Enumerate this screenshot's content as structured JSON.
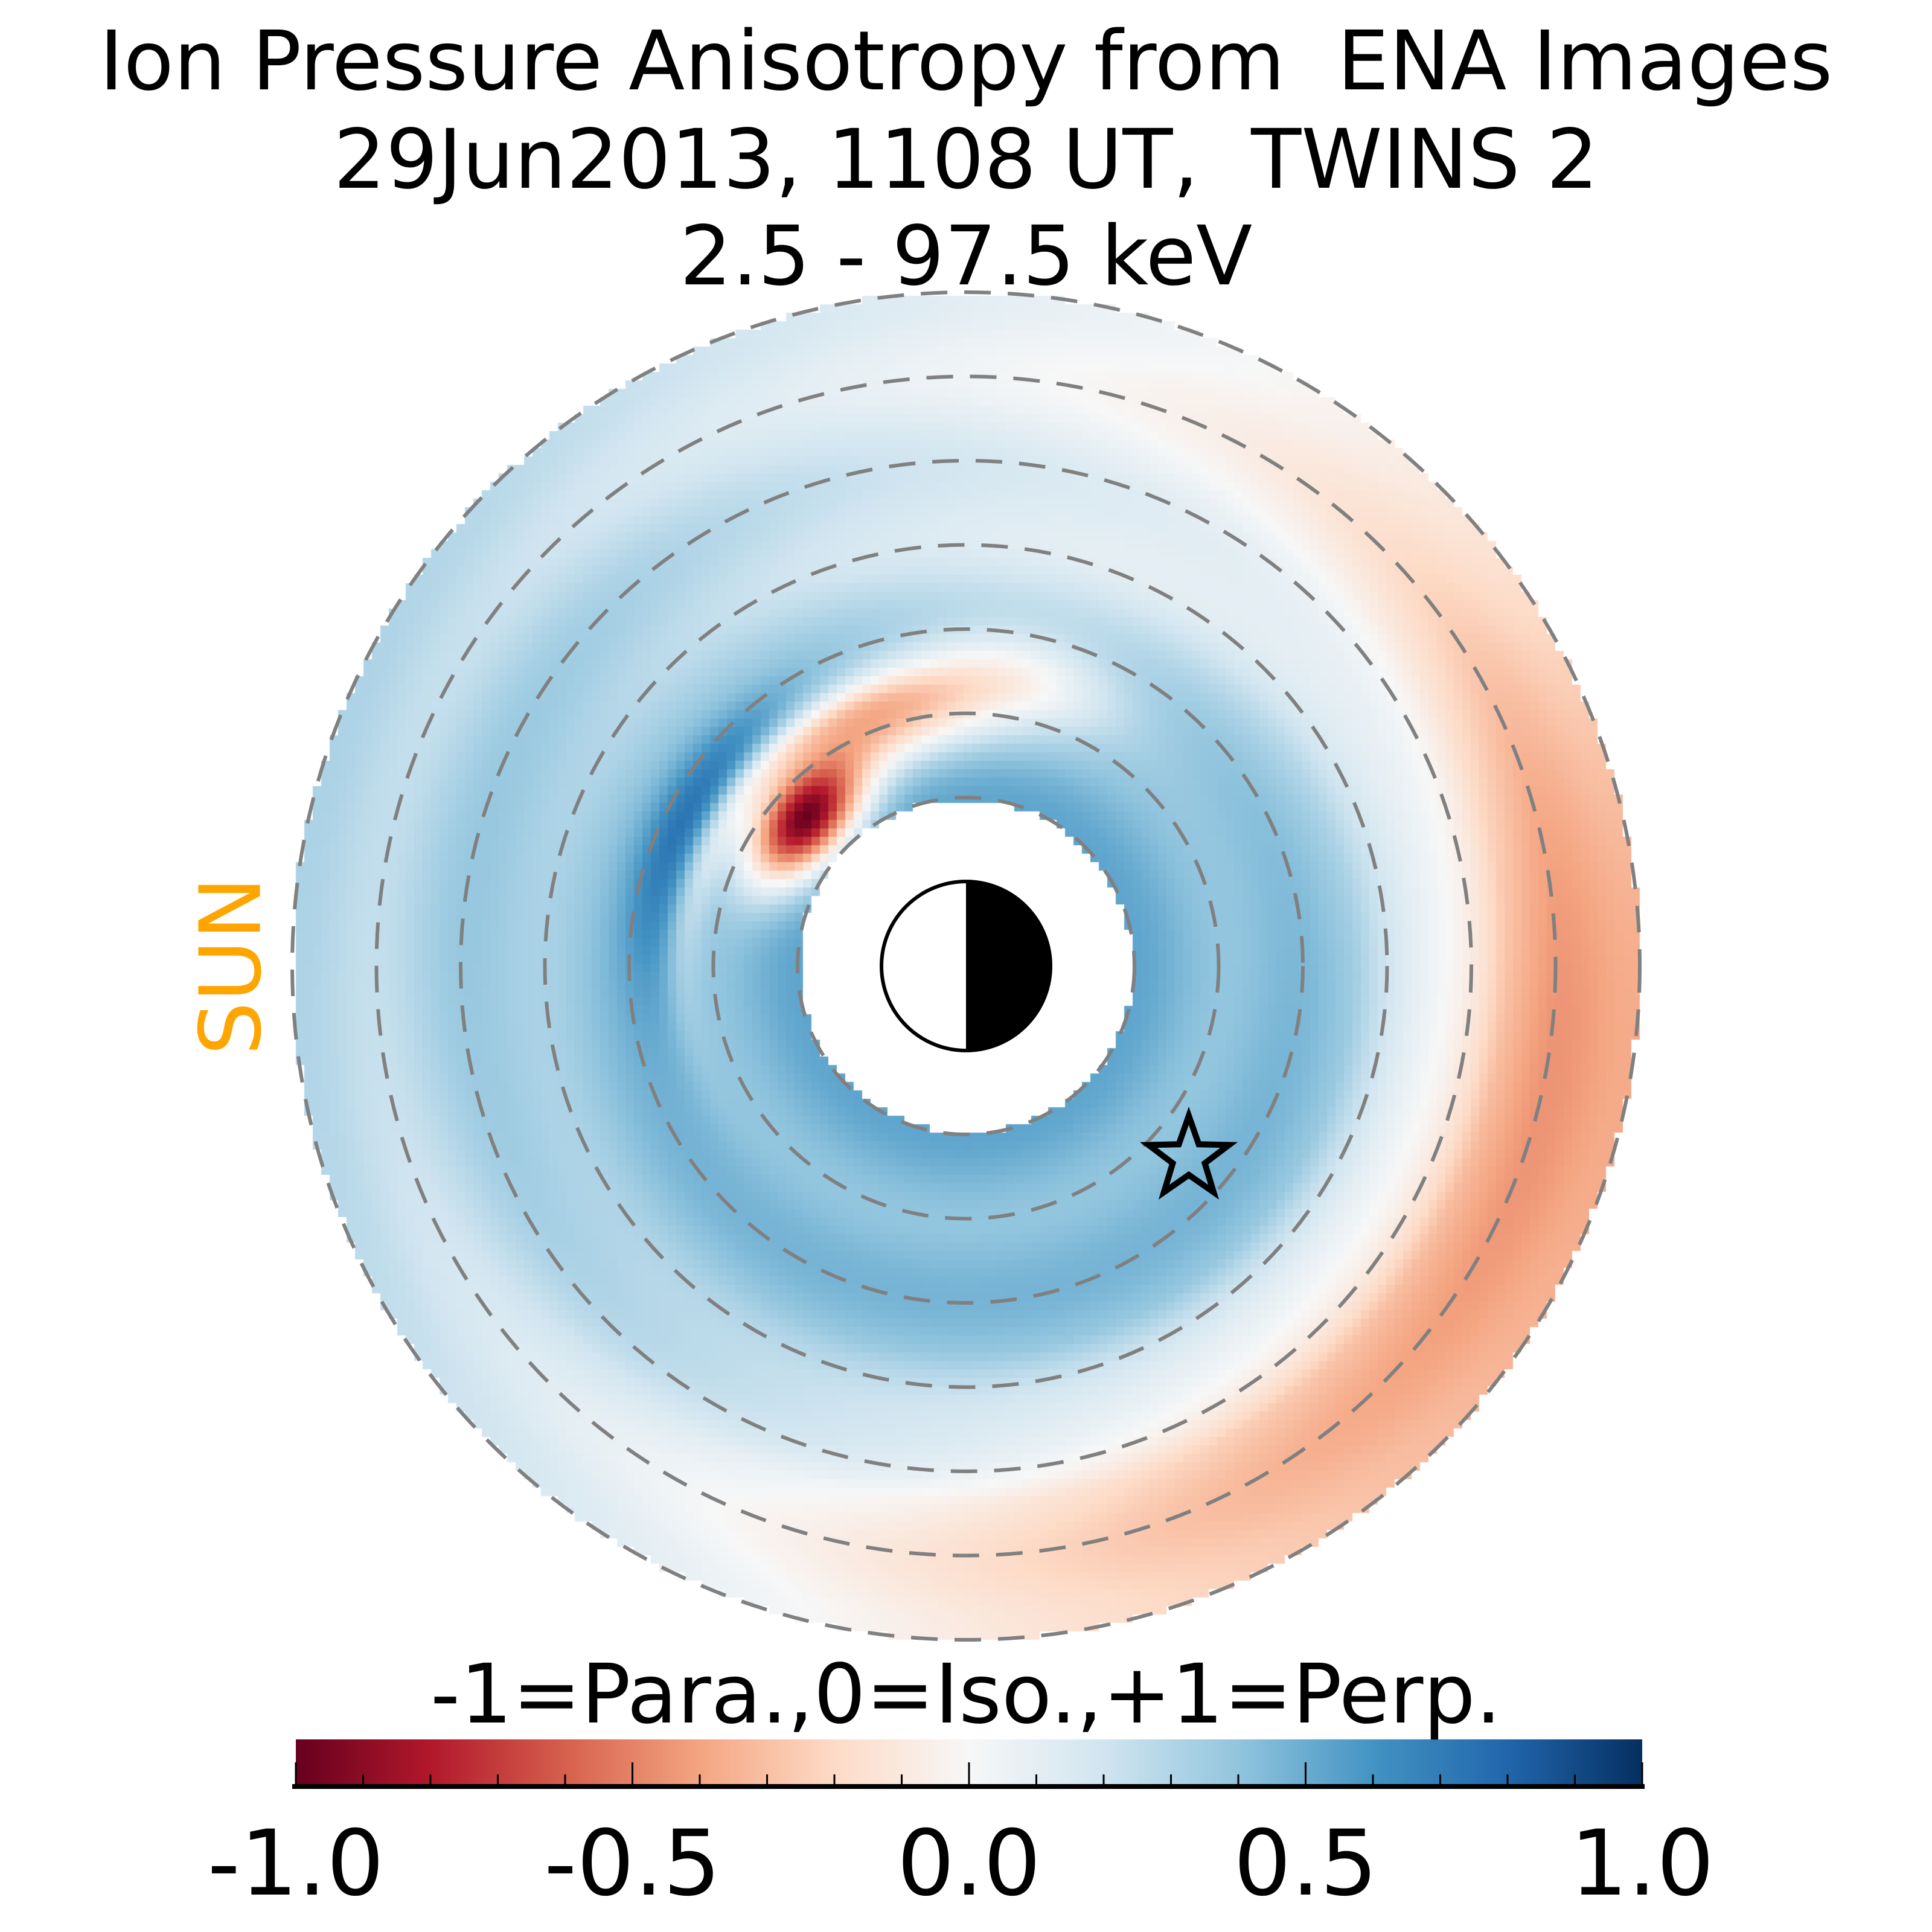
{
  "title": {
    "line1": "Ion Pressure Anisotropy from  ENA Images",
    "line2": "29Jun2013, 1108 UT,  TWINS 2",
    "line3": "2.5 - 97.5 keV"
  },
  "sun_label": "SUN",
  "sun_color": "#FFA500",
  "chart_data": {
    "type": "heatmap",
    "projection": "polar (equatorial plane, Sun to the left)",
    "title": "Ion Pressure Anisotropy from  ENA Images / 29Jun2013, 1108 UT,  TWINS 2 / 2.5 - 97.5 keV",
    "colorbar": {
      "label": "-1=Para.,0=Iso.,+1=Perp.",
      "range": [
        -1.0,
        1.0
      ],
      "colormap": "RdBu",
      "colormap_stops": [
        "#67001f",
        "#b2182b",
        "#d6604d",
        "#f4a582",
        "#fddbc7",
        "#f7f7f7",
        "#d1e5f0",
        "#92c5de",
        "#4393c3",
        "#2166ac",
        "#053061"
      ],
      "major_ticks": [
        -1.0,
        -0.5,
        0.0,
        0.5,
        1.0
      ],
      "tick_labels": [
        "-1.0",
        "-0.5",
        "0.0",
        "0.5",
        "1.0"
      ],
      "minor_tick_step": 0.1
    },
    "rings_RE": [
      2,
      3,
      4,
      5,
      6,
      7,
      8
    ],
    "inner_boundary_RE": 2,
    "outer_boundary_RE": 8,
    "features": [
      {
        "name": "parallel anisotropy peak (dusk-side, near inner edge)",
        "value": -0.9
      },
      {
        "name": "perpendicular band outside red region",
        "value": 0.65
      },
      {
        "name": "inner magnetosphere background",
        "value": 0.4
      },
      {
        "name": "outer dawn/night region",
        "value": -0.15
      }
    ],
    "markers": [
      {
        "name": "earth",
        "day_side": "left"
      },
      {
        "name": "spacecraft star",
        "position": "lower right, about 4 RE"
      }
    ]
  }
}
